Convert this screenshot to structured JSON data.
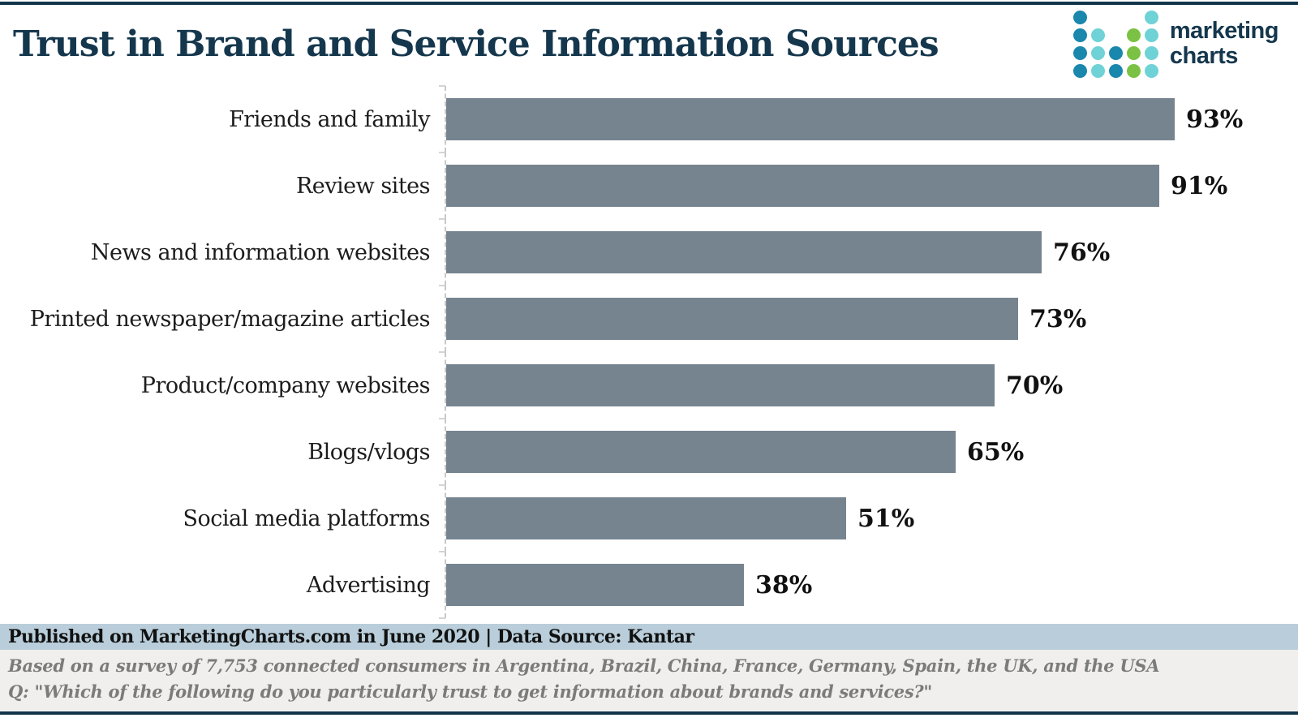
{
  "title": "Trust in Brand and Service Information Sources",
  "logo": {
    "text_line1": "marketing",
    "text_line2": "charts",
    "colors": {
      "dark": "#1a87ac",
      "cyan": "#6fd2d6",
      "green": "#7bc143",
      "text": "#15374d"
    },
    "dots": [
      [
        "dark",
        null,
        null,
        null,
        "cyan"
      ],
      [
        "dark",
        "cyan",
        null,
        "green",
        "cyan"
      ],
      [
        "dark",
        "cyan",
        "dark",
        "green",
        "cyan"
      ],
      [
        "dark",
        "cyan",
        "dark",
        "green",
        "cyan"
      ]
    ]
  },
  "chart_data": {
    "type": "bar",
    "orientation": "horizontal",
    "title": "Trust in Brand and Service Information Sources",
    "categories": [
      "Friends and family",
      "Review sites",
      "News and information websites",
      "Printed newspaper/magazine articles",
      "Product/company websites",
      "Blogs/vlogs",
      "Social media platforms",
      "Advertising"
    ],
    "values": [
      93,
      91,
      76,
      73,
      70,
      65,
      51,
      38
    ],
    "value_labels": [
      "93%",
      "91%",
      "76%",
      "73%",
      "70%",
      "65%",
      "51%",
      "38%"
    ],
    "unit": "%",
    "xlim": [
      0,
      100
    ],
    "grid": false,
    "legend": false,
    "bar_color": "#76848f",
    "axis_line_style": "dashed"
  },
  "footer": {
    "published": "Published on MarketingCharts.com in June 2020 | Data Source: Kantar",
    "survey_note": "Based on a survey of 7,753 connected consumers in Argentina, Brazil, China, France, Germany, Spain, the UK, and the USA",
    "question": "Q: \"Which of the following do you particularly trust to get information about brands and services?\""
  }
}
